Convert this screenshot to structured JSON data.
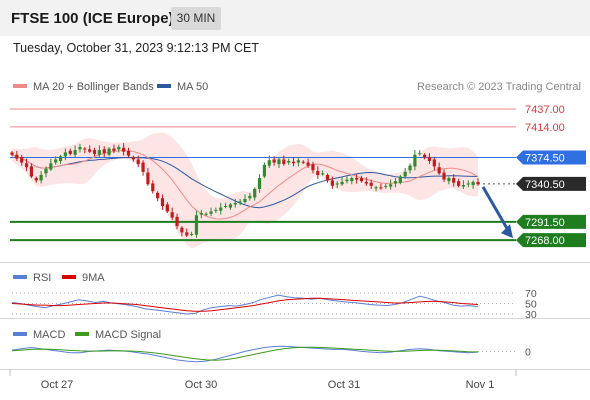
{
  "header": {
    "title": "FTSE 100 (ICE Europe)",
    "interval": "30 MIN"
  },
  "datetime": "Tuesday, October 31, 2023 9:12:13 PM CET",
  "colors": {
    "resistance": "#ef8a8a",
    "pivot": "#2f6fe0",
    "support": "#1e7d1e",
    "last": "#2a2a2a",
    "ma20": "#ef8a8a",
    "ma50": "#2c5aa0",
    "bands": "#fde0e0",
    "rsi": "#5a7fd6",
    "rsi_ma": "#d90000",
    "macd": "#5a7fd6",
    "macd_signal": "#3c9a1c",
    "candle_up": "#2e8b2e",
    "candle_down": "#c21b1b"
  },
  "chart_data": [
    {
      "type": "candlestick",
      "legend": [
        {
          "label": "MA 20 + Bollinger Bands",
          "color": "#ef8a8a"
        },
        {
          "label": "MA 50",
          "color": "#2c5aa0"
        }
      ],
      "copyright": "Research © 2023 Trading Central",
      "x_ticks": [
        "Oct 27",
        "Oct 30",
        "Oct 31",
        "Nov 1"
      ],
      "ylim": [
        7245,
        7455
      ],
      "levels": [
        {
          "value": 7437.0,
          "label": "7437.00",
          "kind": "resistance"
        },
        {
          "value": 7414.0,
          "label": "7414.00",
          "kind": "resistance"
        },
        {
          "value": 7374.5,
          "label": "7374.50",
          "kind": "pivot"
        },
        {
          "value": 7340.5,
          "label": "7340.50",
          "kind": "last"
        },
        {
          "value": 7291.5,
          "label": "7291.50",
          "kind": "support"
        },
        {
          "value": 7268.0,
          "label": "7268.00",
          "kind": "support"
        }
      ],
      "forecast_arrow": {
        "from": 7340.5,
        "to": 7268.0,
        "direction": "down"
      },
      "close": [
        7378,
        7373,
        7368,
        7362,
        7350,
        7345,
        7352,
        7360,
        7367,
        7372,
        7376,
        7381,
        7379,
        7384,
        7388,
        7385,
        7382,
        7379,
        7384,
        7380,
        7386,
        7383,
        7388,
        7382,
        7377,
        7372,
        7366,
        7356,
        7340,
        7331,
        7322,
        7312,
        7305,
        7297,
        7286,
        7278,
        7274,
        7276,
        7300,
        7303,
        7302,
        7305,
        7307,
        7310,
        7312,
        7314,
        7316,
        7318,
        7321,
        7325,
        7334,
        7348,
        7365,
        7371,
        7368,
        7372,
        7366,
        7370,
        7367,
        7371,
        7368,
        7364,
        7358,
        7352,
        7354,
        7345,
        7338,
        7341,
        7343,
        7346,
        7348,
        7346,
        7344,
        7341,
        7338,
        7336,
        7335,
        7338,
        7340,
        7344,
        7350,
        7356,
        7364,
        7378,
        7380,
        7375,
        7370,
        7363,
        7354,
        7346,
        7348,
        7342,
        7338,
        7339,
        7341,
        7343,
        7340
      ]
    },
    {
      "type": "line",
      "title": "",
      "legend": [
        {
          "label": "RSI",
          "color": "#5a7fd6"
        },
        {
          "label": "9MA",
          "color": "#d90000"
        }
      ],
      "ylim": [
        28,
        72
      ],
      "y_ticks": [
        {
          "value": 70,
          "label": "70"
        },
        {
          "value": 50,
          "label": "50"
        },
        {
          "value": 30,
          "label": "30"
        }
      ],
      "series": [
        {
          "name": "RSI",
          "values": [
            52,
            50,
            47,
            44,
            42,
            46,
            49,
            53,
            57,
            55,
            52,
            54,
            51,
            49,
            47,
            44,
            40,
            38,
            36,
            34,
            32,
            30,
            31,
            38,
            42,
            44,
            46,
            45,
            48,
            52,
            58,
            62,
            66,
            63,
            61,
            60,
            58,
            60,
            57,
            55,
            53,
            52,
            50,
            48,
            47,
            46,
            48,
            52,
            58,
            64,
            60,
            55,
            52,
            47,
            45,
            46,
            44
          ]
        },
        {
          "name": "9MA",
          "values": [
            50,
            49,
            48,
            47,
            47,
            46,
            46,
            47,
            48,
            49,
            50,
            51,
            51,
            50,
            49,
            48,
            46,
            44,
            42,
            40,
            38,
            36,
            35,
            35,
            36,
            38,
            40,
            42,
            44,
            46,
            49,
            52,
            55,
            57,
            58,
            59,
            60,
            60,
            59,
            58,
            57,
            56,
            55,
            54,
            53,
            52,
            51,
            51,
            52,
            53,
            54,
            54,
            53,
            52,
            50,
            49,
            48
          ]
        }
      ]
    },
    {
      "type": "line",
      "title": "",
      "legend": [
        {
          "label": "MACD",
          "color": "#5a7fd6"
        },
        {
          "label": "MACD Signal",
          "color": "#3c9a1c"
        }
      ],
      "ylim": [
        -12,
        8
      ],
      "y_ticks": [
        {
          "value": 0,
          "label": "0"
        }
      ],
      "series": [
        {
          "name": "MACD",
          "values": [
            1,
            2,
            3,
            2,
            1,
            0,
            -1,
            -1,
            0,
            0.5,
            1,
            0.5,
            0,
            -1,
            -2,
            -3.5,
            -5,
            -6.5,
            -7.5,
            -8,
            -7.5,
            -6,
            -4,
            -2,
            0,
            1.5,
            3,
            3.8,
            4,
            3.5,
            3,
            2.5,
            2,
            1.5,
            1.5,
            1,
            0,
            -0.5,
            -1,
            -0.5,
            0.5,
            1.5,
            2,
            1.5,
            0.5,
            0,
            -0.5,
            -1,
            -0.5
          ]
        },
        {
          "name": "MACD Signal",
          "values": [
            0.5,
            1,
            1.5,
            1.8,
            1.6,
            1.2,
            0.8,
            0.4,
            0.2,
            0.2,
            0.4,
            0.5,
            0.3,
            0,
            -0.6,
            -1.4,
            -2.5,
            -3.6,
            -4.8,
            -5.8,
            -6.5,
            -6.8,
            -6.3,
            -5.3,
            -3.8,
            -2.2,
            -0.6,
            0.9,
            2,
            2.8,
            3.2,
            3.2,
            3,
            2.6,
            2.2,
            1.8,
            1.4,
            0.9,
            0.4,
            0.1,
            0,
            0.3,
            0.7,
            1,
            0.9,
            0.6,
            0.2,
            -0.2,
            -0.4
          ]
        }
      ]
    }
  ]
}
